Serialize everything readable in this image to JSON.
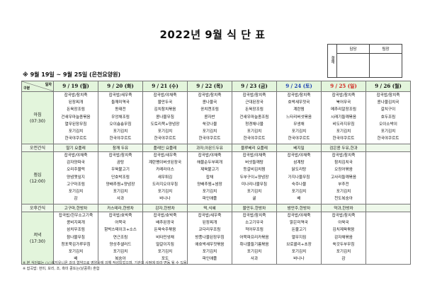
{
  "title": "2022년 9월 식 단 표",
  "approval": {
    "label": "결재",
    "columns": [
      "담당",
      "팀장"
    ]
  },
  "subtitle": "※ 9월 19일 ~ 9월 25일 (은천요양원)",
  "corner": {
    "top": "일자",
    "bottom": "구분"
  },
  "days": [
    {
      "label": "9 / 19 (월)",
      "type": "weekday"
    },
    {
      "label": "9 / 20 (화)",
      "type": "weekday"
    },
    {
      "label": "9 / 21 (수)",
      "type": "weekday"
    },
    {
      "label": "9 / 22 (목)",
      "type": "weekday"
    },
    {
      "label": "9 / 23 (금)",
      "type": "weekday"
    },
    {
      "label": "9 / 24 (토)",
      "type": "saturday"
    },
    {
      "label": "9 / 25 (일)",
      "type": "sunday"
    },
    {
      "label": "9 / 26 (월)",
      "type": "weekday"
    }
  ],
  "colors": {
    "header_bg": "#e3f5dc",
    "saturday": "#1a3fb0",
    "sunday": "#d0201a"
  },
  "meals": [
    {
      "label": "아침",
      "time": "(07:30)",
      "kind": "meal",
      "cells": [
        [
          "잡곡밥/참치죽",
          "된장찌개",
          "돈육장조림",
          "건새우마늘종볶음",
          "열무된장무침",
          "포기김치",
          "한국야쿠르트"
        ],
        [
          "잡곡밥/새우죽",
          "들깨미역국",
          "동태전",
          "우엉채조림",
          "오이숑숑무침",
          "포기김치",
          "한국야쿠르트"
        ],
        [
          "잡곡밥/야채죽",
          "물만두국",
          "김치참치볶음",
          "콩나물무침",
          "도토리묵+양념장",
          "포기김치",
          "한국야쿠르트"
        ],
        [
          "잡곡밥/참치죽",
          "콩나물국",
          "꽁치캔조림",
          "콩자반",
          "쑥갓나물",
          "포기김치",
          "한국야쿠르트"
        ],
        [
          "잡곡밥/참치죽",
          "근대된장국",
          "돈육장조림",
          "건새우마늘종조림",
          "청경채나물",
          "포기김치",
          "한국야쿠르트"
        ],
        [
          "잡곡밥/참치죽",
          "호박새우젓국",
          "계란찜",
          "느타리버섯볶음",
          "무생채",
          "포기김치",
          "한국야쿠르트"
        ],
        [
          "잡곡밥/참치죽",
          "북어무국",
          "메추리알장조림",
          "시래기들깨볶음",
          "비도라지무침",
          "포기김치",
          "한국야쿠르트"
        ],
        [
          "잡곡밥/참치죽",
          "콩나물김치국",
          "갈치구이",
          "호두조림",
          "오이소박이",
          "포기김치",
          "한국야쿠르트"
        ]
      ]
    },
    {
      "label": "오전간식",
      "kind": "snack",
      "cells": [
        "딸기 요플레",
        "참깨 두유",
        "플레인 요플레",
        "과자,아몬드두유",
        "블루베리 요플레",
        "베지밀",
        "검은콩 두유,한과",
        ""
      ]
    },
    {
      "label": "점심",
      "time": "(12:00)",
      "kind": "meal",
      "cells": [
        [
          "잡곡밥/야채죽",
          "감자양파국",
          "오리주물럭",
          "양념깻잎지",
          "고구마조림",
          "포기김치",
          "감"
        ],
        [
          "잡곡밥/참치죽",
          "곰탕",
          "우육불고기",
          "단호박조림",
          "양배추찜+양념장",
          "포기김치",
          "사과"
        ],
        [
          "잡곡밥/새우죽",
          "계란팽이버섯된장국",
          "카레라이스",
          "새우튀김",
          "도라지오이무침",
          "포기김치",
          "바나나"
        ],
        [
          "잡곡밥/야채죽",
          "해물순두부찌개",
          "제육불고기",
          "잡채",
          "양배추찜+쌈장",
          "포기김치",
          "파인애플"
        ],
        [
          "잡곡밥/야채죽",
          "버섯들깨탕",
          "등갈비김치찜",
          "두부구이+양념장",
          "미나리나물무침",
          "포기김치",
          "귤"
        ],
        [
          "잡곡밥/야채죽",
          "삼계탕",
          "닭도리탕",
          "가지나물무침",
          "숙주나물",
          "포기김치",
          "배"
        ],
        [
          "잡곡밥/참치죽",
          "참치김치국",
          "오징어볶음",
          "고사리들깨볶음",
          "부추전",
          "포기김치",
          "천도복숭아"
        ],
        []
      ]
    },
    {
      "label": "오후간식",
      "kind": "snack",
      "cells": [
        "고구마,한방차",
        "카스테라,한방차",
        "감자,한방차",
        "떡,식혜",
        "물만두,한방차",
        "밤만주,한방차",
        "약과,한방차",
        ""
      ]
    },
    {
      "label": "저녁",
      "time": "(17:30)",
      "kind": "meal",
      "cells": [
        [
          "잡곡밥/한우소고기죽",
          "콩비지찌개",
          "삼치무조림",
          "참나물무침",
          "청포묵김가루무침",
          "포기김치",
          "배"
        ],
        [
          "잡곡밥/호박죽",
          "어묵국",
          "함박스테이크+소스",
          "연근조림",
          "양상추샐러드",
          "포기김치",
          "복숭아"
        ],
        [
          "잡곡밥/호박죽",
          "배추된장국",
          "돈육숙주볶음",
          "비타민냉채",
          "얼갈이지짐",
          "포기김치",
          "포도"
        ],
        [
          "잡곡밥/새우죽",
          "된장찌개",
          "코다리무조림",
          "방풍나물된장무침",
          "애호박새우젓볶음",
          "포기김치",
          "파인애플"
        ],
        [
          "잡곡밥/참치죽",
          "소고기무국",
          "적어무조림",
          "어묵파프리카볶음",
          "취나물들기름볶음",
          "포기김치",
          "사과"
        ],
        [
          "잡곡밥/야채죽",
          "맑은미역국",
          "돈불고기",
          "열무지짐",
          "브로콜리+초장",
          "포기김치",
          "바나나"
        ],
        [
          "잡곡밥/참치죽",
          "아욱국",
          "김치제육볶음",
          "감자채볶음",
          "쑥갓두부무침",
          "포기김치",
          "감"
        ],
        []
      ]
    }
  ],
  "notes": [
    "※ 본 식단표는 ○○복지유니온 과의 협약으로 영양사에 의해 작성되었으며, 기관의 사정에 따라 변동 될 수 있음",
    "※ 잡곡밥: 현미, 보리, 조, 흑미 콩또는(낱콩류) 혼합"
  ]
}
